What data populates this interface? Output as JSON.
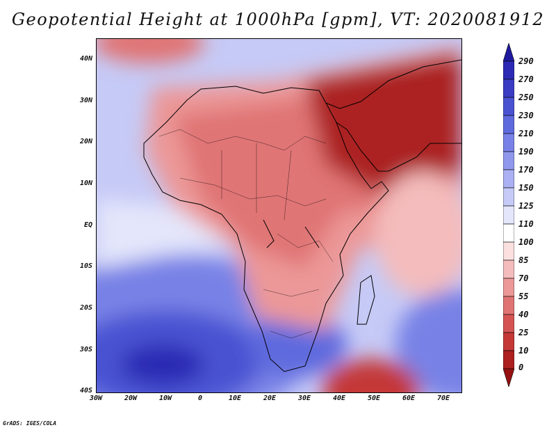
{
  "title": "Geopotential Height at 1000hPa [gpm], VT: 2020081912",
  "credit": "GrADS: IGES/COLA",
  "map": {
    "lat_labels": [
      "40N",
      "30N",
      "20N",
      "10N",
      "EQ",
      "10S",
      "20S",
      "30S",
      "40S"
    ],
    "lon_labels": [
      "30W",
      "20W",
      "10W",
      "0",
      "10E",
      "20E",
      "30E",
      "40E",
      "50E",
      "60E",
      "70E"
    ],
    "extent": {
      "lon_min": -30,
      "lon_max": 75,
      "lat_min": -40,
      "lat_max": 45
    },
    "variable": "Geopotential Height",
    "level": "1000hPa",
    "units": "gpm",
    "valid_time": "2020081912"
  },
  "colorbar": {
    "labels": [
      "290",
      "270",
      "250",
      "230",
      "210",
      "190",
      "170",
      "150",
      "125",
      "110",
      "100",
      "85",
      "70",
      "55",
      "40",
      "25",
      "10",
      "0"
    ],
    "colors": [
      "#1e1a9e",
      "#2c2ab4",
      "#3a3cc4",
      "#4a52d2",
      "#5f6ade",
      "#7882e6",
      "#9098ec",
      "#aab0f2",
      "#c6caf6",
      "#e4e6fb",
      "#ffffff",
      "#fbe0e0",
      "#f4bcbc",
      "#ec9898",
      "#e07474",
      "#d45454",
      "#c43838",
      "#ac2020",
      "#951010"
    ]
  },
  "colors": {
    "ocean_blue": "#9aa4ee",
    "land_red": "#d45454",
    "coastline": "#000000"
  }
}
